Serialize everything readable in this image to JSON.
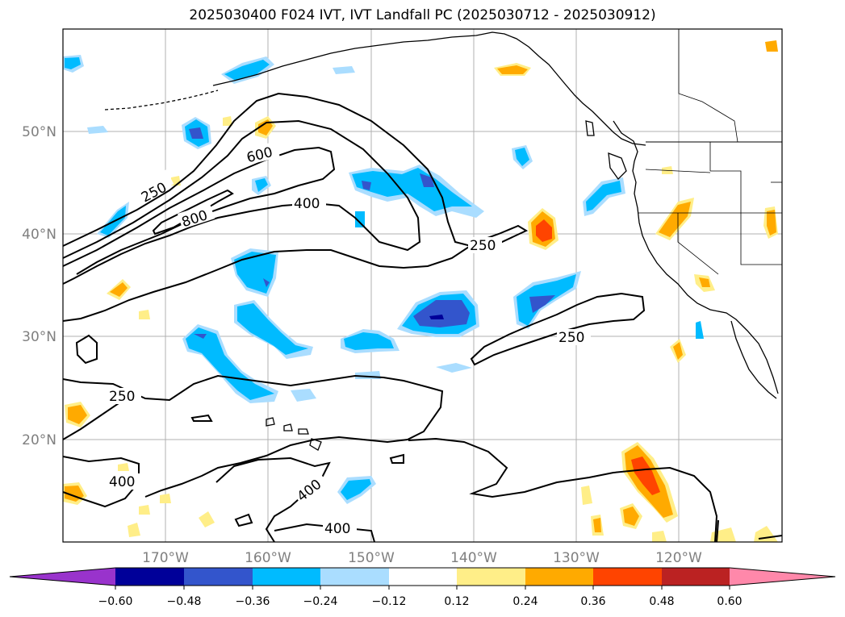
{
  "title": "2025030400 F024 IVT, IVT Landfall PC (2025030712 - 2025030912)",
  "map": {
    "lat_labels": [
      "50°N",
      "40°N",
      "30°N",
      "20°N"
    ],
    "lon_labels": [
      "170°W",
      "160°W",
      "150°W",
      "140°W",
      "130°W",
      "120°W"
    ],
    "contour_labels": [
      "250",
      "600",
      "800",
      "400",
      "250",
      "250",
      "250",
      "400",
      "400",
      "400"
    ]
  },
  "colorbar": {
    "colors": [
      "#9933cc",
      "#000099",
      "#3355cc",
      "#00bbff",
      "#aaddff",
      "#ffffff",
      "#ffee88",
      "#ffaa00",
      "#ff4400",
      "#bb2222",
      "#ff88aa"
    ],
    "tick_labels": [
      "-0.60",
      "-0.48",
      "-0.36",
      "-0.24",
      "-0.12",
      "0.12",
      "0.24",
      "0.36",
      "0.48",
      "0.60"
    ]
  }
}
